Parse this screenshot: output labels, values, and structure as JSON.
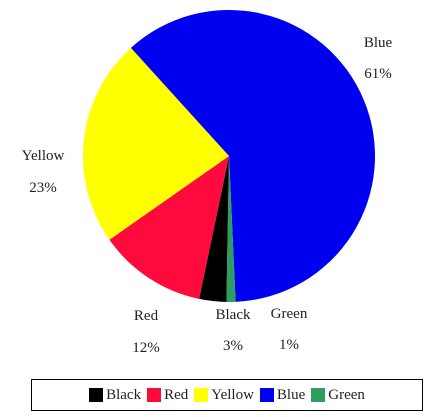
{
  "chart_data": {
    "type": "pie",
    "slices": [
      {
        "name": "Black",
        "value": 3,
        "label": "3%",
        "color": "#000000"
      },
      {
        "name": "Red",
        "value": 12,
        "label": "12%",
        "color": "#ff0a3c"
      },
      {
        "name": "Yellow",
        "value": 23,
        "label": "23%",
        "color": "#ffff00"
      },
      {
        "name": "Blue",
        "value": 61,
        "label": "61%",
        "color": "#0000f0"
      },
      {
        "name": "Green",
        "value": 1,
        "label": "1%",
        "color": "#2e9e5e"
      }
    ],
    "legend": {
      "placement": "bottom",
      "entries": [
        "Black",
        "Red",
        "Yellow",
        "Blue",
        "Green"
      ]
    }
  }
}
